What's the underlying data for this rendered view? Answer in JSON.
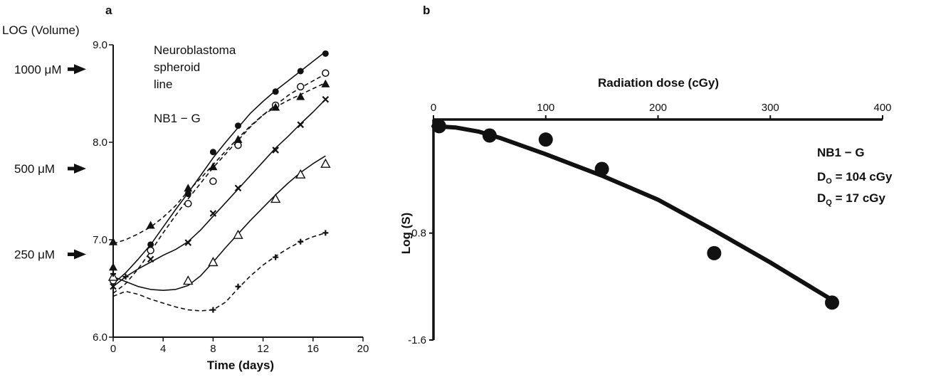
{
  "chart_data": [
    {
      "panel": "a",
      "type": "line",
      "ylabel": "LOG (Volume)",
      "xlabel": "Time (days)",
      "xlim": [
        0,
        20
      ],
      "ylim": [
        6.0,
        9.0
      ],
      "xticks": [
        "0",
        "4",
        "8",
        "12",
        "16",
        "20"
      ],
      "yticks": [
        "6.0",
        "7.0",
        "8.0",
        "9.0"
      ],
      "annotation": [
        "Neuroblastoma",
        "spheroid",
        "line"
      ],
      "cell_line": "NB1 − G",
      "concentration_labels": [
        {
          "label": "1000 μM",
          "y": 8.75
        },
        {
          "label": "500 μM",
          "y": 7.73
        },
        {
          "label": "250 μM",
          "y": 6.85
        }
      ],
      "series": [
        {
          "marker": "filled-circle",
          "style": "solid",
          "points": [
            [
              0,
              6.58
            ],
            [
              3,
              6.95
            ],
            [
              6,
              7.47
            ],
            [
              8,
              7.9
            ],
            [
              10,
              8.17
            ],
            [
              13,
              8.52
            ],
            [
              15,
              8.73
            ],
            [
              17,
              8.91
            ]
          ],
          "curve": [
            [
              0,
              6.55
            ],
            [
              1,
              6.66
            ],
            [
              2,
              6.8
            ],
            [
              3,
              6.95
            ],
            [
              4,
              7.13
            ],
            [
              5,
              7.31
            ],
            [
              6,
              7.48
            ],
            [
              7,
              7.66
            ],
            [
              8,
              7.84
            ],
            [
              9,
              8.0
            ],
            [
              10,
              8.15
            ],
            [
              11,
              8.3
            ],
            [
              12,
              8.42
            ],
            [
              13,
              8.53
            ],
            [
              14,
              8.63
            ],
            [
              15,
              8.73
            ],
            [
              16,
              8.83
            ],
            [
              17,
              8.93
            ]
          ]
        },
        {
          "marker": "open-circle",
          "style": "dashed",
          "points": [
            [
              0,
              6.58
            ],
            [
              3,
              6.89
            ],
            [
              6,
              7.37
            ],
            [
              8,
              7.6
            ],
            [
              10,
              7.97
            ],
            [
              13,
              8.38
            ],
            [
              15,
              8.57
            ],
            [
              17,
              8.71
            ]
          ],
          "curve": [
            [
              0,
              6.45
            ],
            [
              1,
              6.55
            ],
            [
              2,
              6.7
            ],
            [
              3,
              6.88
            ],
            [
              4,
              7.07
            ],
            [
              5,
              7.25
            ],
            [
              6,
              7.42
            ],
            [
              7,
              7.58
            ],
            [
              8,
              7.74
            ],
            [
              9,
              7.88
            ],
            [
              10,
              8.02
            ],
            [
              11,
              8.16
            ],
            [
              12,
              8.28
            ],
            [
              13,
              8.38
            ],
            [
              14,
              8.48
            ],
            [
              15,
              8.56
            ],
            [
              16,
              8.63
            ],
            [
              17,
              8.7
            ]
          ]
        },
        {
          "marker": "filled-triangle",
          "style": "dashed",
          "points": [
            [
              0,
              6.98
            ],
            [
              0,
              6.72
            ],
            [
              3,
              7.15
            ],
            [
              6,
              7.53
            ],
            [
              8,
              7.75
            ],
            [
              10,
              8.03
            ],
            [
              13,
              8.36
            ],
            [
              15,
              8.47
            ],
            [
              17,
              8.6
            ]
          ],
          "curve": [
            [
              0,
              6.96
            ],
            [
              1,
              7.0
            ],
            [
              2,
              7.06
            ],
            [
              3,
              7.13
            ],
            [
              4,
              7.23
            ],
            [
              5,
              7.35
            ],
            [
              6,
              7.5
            ],
            [
              7,
              7.63
            ],
            [
              8,
              7.77
            ],
            [
              9,
              7.91
            ],
            [
              10,
              8.04
            ],
            [
              11,
              8.17
            ],
            [
              12,
              8.28
            ],
            [
              13,
              8.36
            ],
            [
              14,
              8.43
            ],
            [
              15,
              8.49
            ],
            [
              16,
              8.55
            ],
            [
              17,
              8.61
            ]
          ]
        },
        {
          "marker": "cross",
          "style": "solid",
          "points": [
            [
              0,
              6.52
            ],
            [
              3,
              6.8
            ],
            [
              6,
              6.97
            ],
            [
              8,
              7.27
            ],
            [
              10,
              7.53
            ],
            [
              13,
              7.92
            ],
            [
              15,
              8.18
            ],
            [
              17,
              8.44
            ]
          ],
          "curve": [
            [
              0,
              6.52
            ],
            [
              1,
              6.62
            ],
            [
              2,
              6.7
            ],
            [
              3,
              6.77
            ],
            [
              4,
              6.84
            ],
            [
              5,
              6.9
            ],
            [
              6,
              6.98
            ],
            [
              7,
              7.1
            ],
            [
              8,
              7.24
            ],
            [
              9,
              7.38
            ],
            [
              10,
              7.52
            ],
            [
              11,
              7.66
            ],
            [
              12,
              7.8
            ],
            [
              13,
              7.94
            ],
            [
              14,
              8.06
            ],
            [
              15,
              8.19
            ],
            [
              16,
              8.31
            ],
            [
              17,
              8.44
            ]
          ]
        },
        {
          "marker": "open-triangle",
          "style": "solid",
          "points": [
            [
              0,
              6.62
            ],
            [
              6,
              6.58
            ],
            [
              8,
              6.77
            ],
            [
              10,
              7.05
            ],
            [
              13,
              7.42
            ],
            [
              15,
              7.67
            ],
            [
              17,
              7.78
            ]
          ],
          "curve": [
            [
              0,
              6.62
            ],
            [
              1,
              6.57
            ],
            [
              2,
              6.52
            ],
            [
              3,
              6.49
            ],
            [
              4,
              6.48
            ],
            [
              5,
              6.49
            ],
            [
              6,
              6.53
            ],
            [
              7,
              6.63
            ],
            [
              8,
              6.77
            ],
            [
              9,
              6.92
            ],
            [
              10,
              7.06
            ],
            [
              11,
              7.2
            ],
            [
              12,
              7.33
            ],
            [
              13,
              7.46
            ],
            [
              14,
              7.58
            ],
            [
              15,
              7.69
            ],
            [
              16,
              7.78
            ],
            [
              17,
              7.86
            ]
          ]
        },
        {
          "marker": "plus",
          "style": "dashed",
          "points": [
            [
              0,
              6.65
            ],
            [
              1,
              6.62
            ],
            [
              8,
              6.28
            ],
            [
              10,
              6.52
            ],
            [
              13,
              6.82
            ],
            [
              15,
              6.98
            ],
            [
              17,
              7.07
            ]
          ],
          "curve": [
            [
              0,
              6.42
            ],
            [
              1,
              6.47
            ],
            [
              2,
              6.44
            ],
            [
              3,
              6.39
            ],
            [
              4,
              6.35
            ],
            [
              5,
              6.31
            ],
            [
              6,
              6.28
            ],
            [
              7,
              6.27
            ],
            [
              8,
              6.28
            ],
            [
              9,
              6.36
            ],
            [
              10,
              6.5
            ],
            [
              11,
              6.63
            ],
            [
              12,
              6.74
            ],
            [
              13,
              6.83
            ],
            [
              14,
              6.91
            ],
            [
              15,
              6.98
            ],
            [
              16,
              7.03
            ],
            [
              17,
              7.07
            ]
          ]
        }
      ]
    },
    {
      "panel": "b",
      "type": "scatter",
      "xlabel": "Radiation dose (cGy)",
      "ylabel": "Log (S)",
      "xlim": [
        0,
        400
      ],
      "ylim": [
        -1.6,
        0.05
      ],
      "xticks": [
        "0",
        "100",
        "200",
        "300",
        "400"
      ],
      "yticks": [
        "-0.8",
        "-1.6"
      ],
      "cell_line": "NB1 − G",
      "d0": {
        "main": "D",
        "sub": "O",
        "value": " = 104 cGy"
      },
      "dq": {
        "main": "D",
        "sub": "Q",
        "value": " = 17 cGy"
      },
      "points": [
        [
          5,
          0.0
        ],
        [
          50,
          -0.07
        ],
        [
          100,
          -0.1
        ],
        [
          150,
          -0.32
        ],
        [
          250,
          -0.95
        ],
        [
          355,
          -1.32
        ]
      ],
      "fit_curve": [
        [
          0,
          0.0
        ],
        [
          20,
          -0.01
        ],
        [
          40,
          -0.04
        ],
        [
          60,
          -0.09
        ],
        [
          80,
          -0.15
        ],
        [
          100,
          -0.21
        ],
        [
          125,
          -0.29
        ],
        [
          150,
          -0.37
        ],
        [
          200,
          -0.55
        ],
        [
          250,
          -0.78
        ],
        [
          300,
          -1.02
        ],
        [
          355,
          -1.3
        ]
      ]
    }
  ]
}
